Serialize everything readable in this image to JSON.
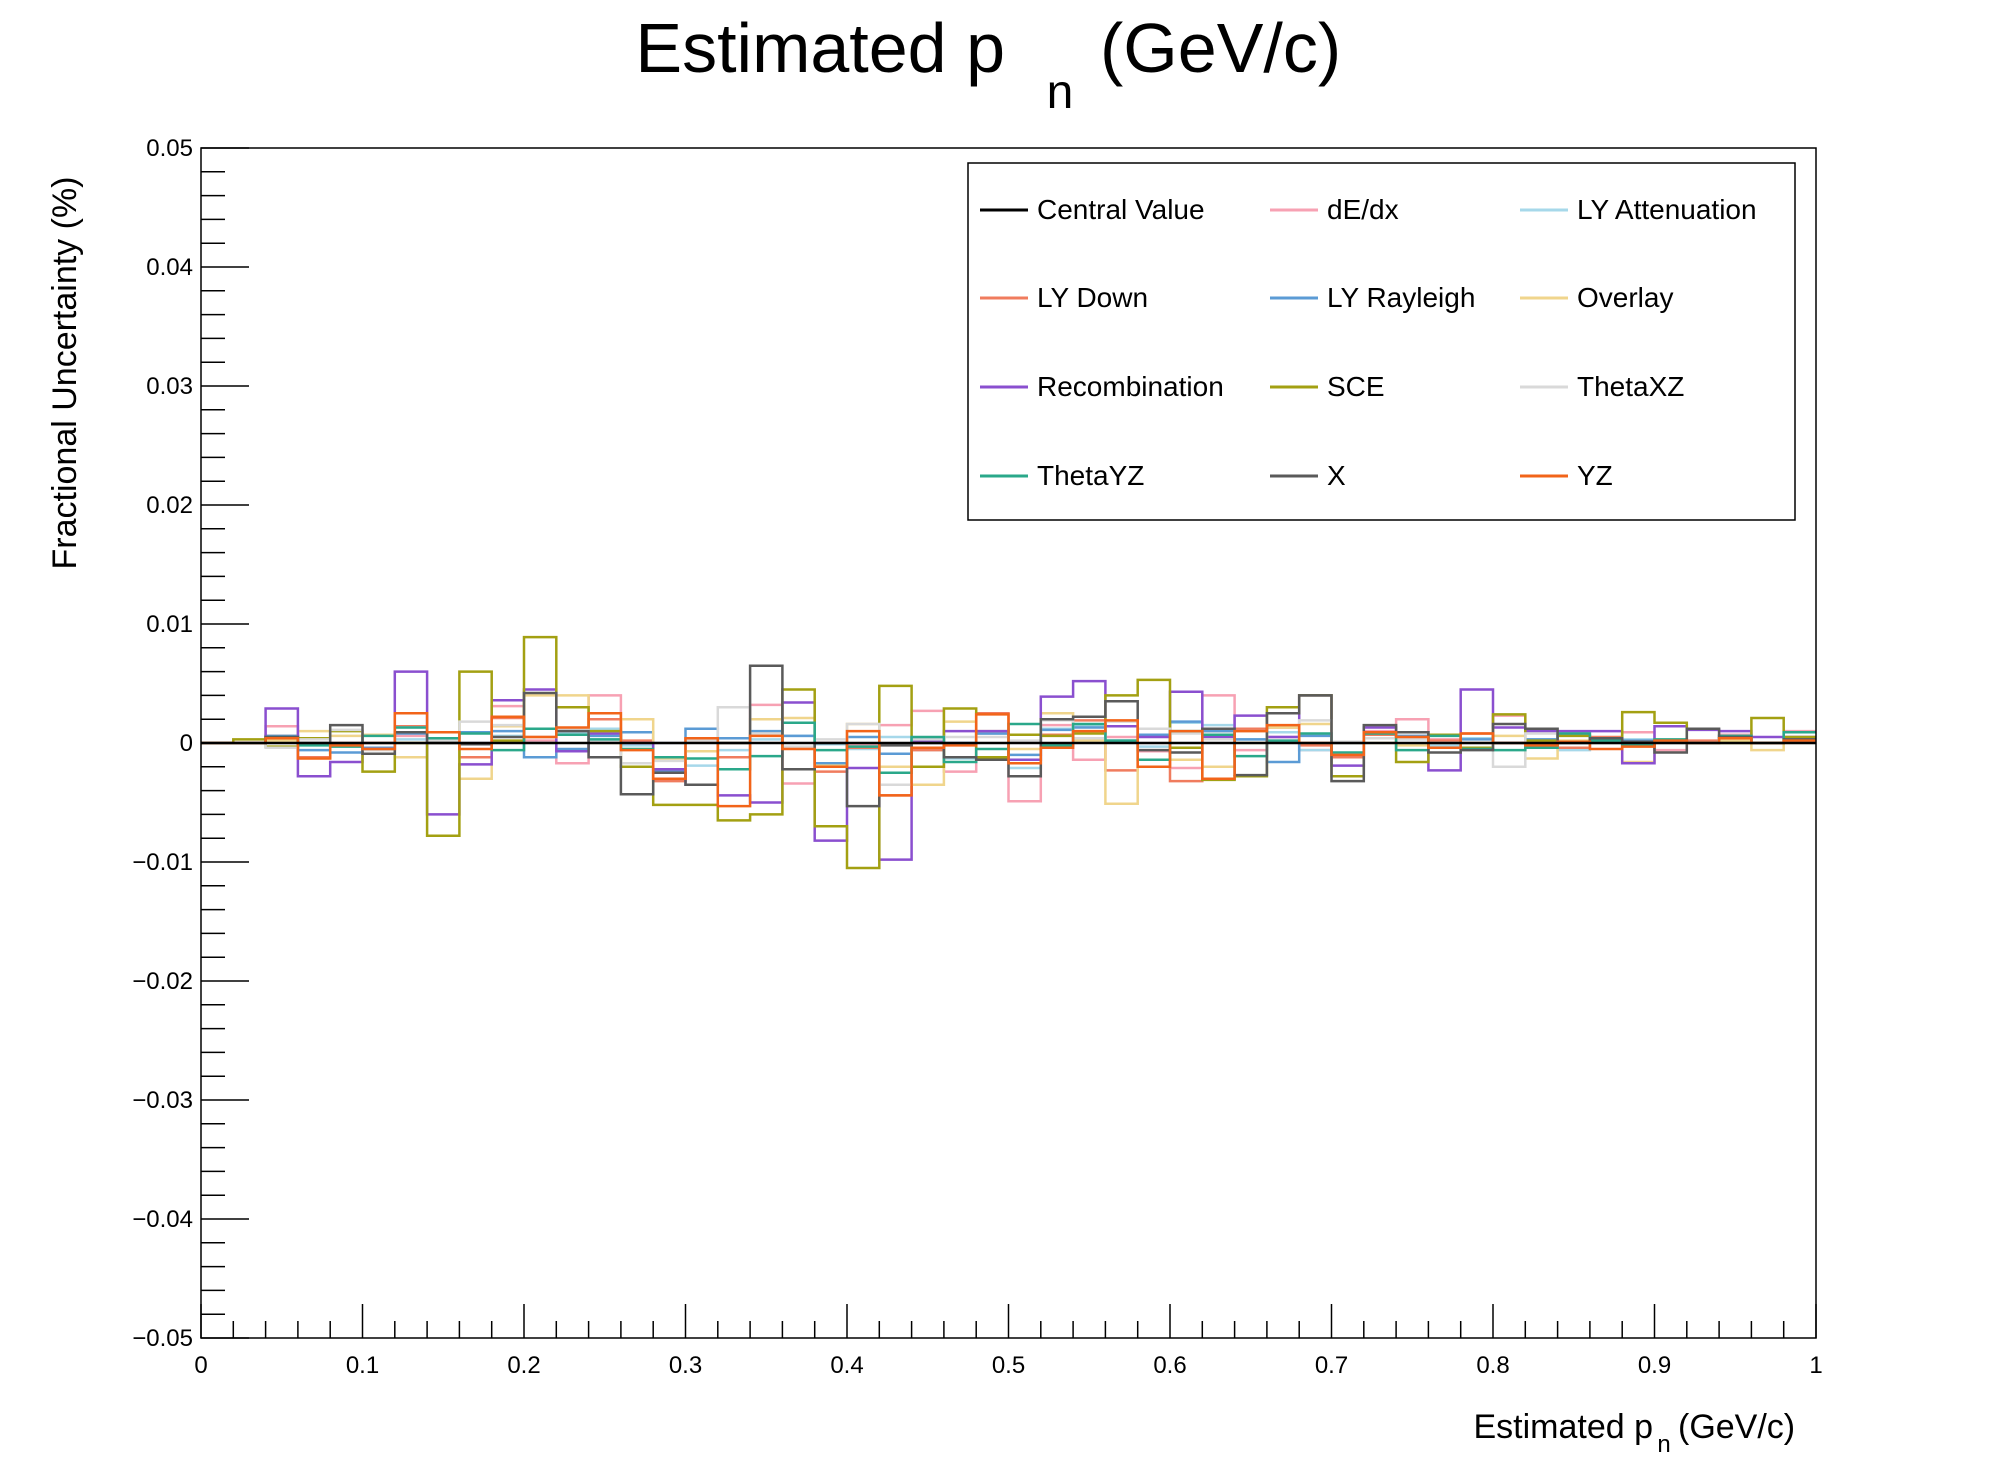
{
  "chart_data": {
    "type": "line",
    "title": "Estimated p",
    "title_sub": "n",
    "title_suffix": " (GeV/c)",
    "xlabel": "Estimated p",
    "xlabel_sub": "n",
    "xlabel_suffix": " (GeV/c)",
    "ylabel": "Fractional Uncertainty (%)",
    "xlim": [
      0,
      1
    ],
    "ylim": [
      -0.05,
      0.05
    ],
    "x_ticks": [
      0,
      0.1,
      0.2,
      0.3,
      0.4,
      0.5,
      0.6,
      0.7,
      0.8,
      0.9,
      1
    ],
    "x_tick_labels": [
      "0",
      "0.1",
      "0.2",
      "0.3",
      "0.4",
      "0.5",
      "0.6",
      "0.7",
      "0.8",
      "0.9",
      "1"
    ],
    "y_ticks": [
      -0.05,
      -0.04,
      -0.03,
      -0.02,
      -0.01,
      0,
      0.01,
      0.02,
      0.03,
      0.04,
      0.05
    ],
    "y_tick_labels": [
      "−0.05",
      "−0.04",
      "−0.03",
      "−0.02",
      "−0.01",
      "0",
      "0.01",
      "0.02",
      "0.03",
      "0.04",
      "0.05"
    ],
    "bin_width": 0.02,
    "grid": false,
    "legend_position": "top-right",
    "series": [
      {
        "name": "Central Value",
        "color": "#000000",
        "values": [
          0,
          0,
          0,
          0,
          0,
          0,
          0,
          0,
          0,
          0,
          0,
          0,
          0,
          0,
          0,
          0,
          0,
          0,
          0,
          0,
          0,
          0,
          0,
          0,
          0,
          0,
          0,
          0,
          0,
          0,
          0,
          0,
          0,
          0,
          0,
          0,
          0,
          0,
          0,
          0,
          0,
          0,
          0,
          0,
          0,
          0,
          0,
          0,
          0,
          0
        ]
      },
      {
        "name": "dE/dx",
        "color": "#f7a1b3",
        "values": [
          0,
          0,
          0.0014,
          0,
          0,
          0,
          0.0006,
          0,
          0,
          0.0031,
          0.0002,
          -0.0017,
          0.004,
          0,
          0,
          0.0003,
          -0.0012,
          0.0032,
          -0.0034,
          0,
          -0.0002,
          0.0015,
          0.0027,
          -0.0024,
          0.0008,
          -0.0049,
          0.0015,
          -0.0014,
          0.0005,
          -0.0007,
          -0.0021,
          0.004,
          -0.0006,
          0.0005,
          -0.0006,
          0,
          0.001,
          0.002,
          0.0003,
          0,
          0.0023,
          0,
          0.0007,
          0,
          0.0009,
          -0.0006,
          0,
          0.0007,
          0,
          0.001
        ]
      },
      {
        "name": "LY Attenuation",
        "color": "#a6d8ea",
        "values": [
          0,
          0,
          0.0004,
          0,
          0,
          0,
          0.0003,
          0,
          0,
          0.0006,
          0,
          0.0009,
          0.0012,
          -0.0002,
          0,
          -0.0019,
          -0.0006,
          0.0003,
          0.0006,
          -0.0001,
          -0.0005,
          0.0005,
          -0.0006,
          -0.0013,
          0.0008,
          -0.0021,
          0.0012,
          0.0014,
          0.0002,
          -0.0003,
          0.0017,
          0.0015,
          0.0003,
          0.0009,
          -0.0006,
          0,
          0.0004,
          0.0003,
          -0.0002,
          0.0004,
          0,
          0.0003,
          -0.0006,
          0,
          0.0003,
          0,
          0,
          0.0006,
          0,
          0.0009
        ]
      },
      {
        "name": "LY Down",
        "color": "#f07c5e",
        "values": [
          0,
          0,
          0.0006,
          -0.0012,
          0,
          0,
          0.0014,
          0,
          -0.0012,
          0.0021,
          0.0005,
          0.0011,
          0.002,
          0.0002,
          -0.0032,
          0.0002,
          -0.0012,
          0.0008,
          -0.0004,
          -0.0024,
          -0.0004,
          -0.0044,
          -0.0006,
          -0.0012,
          0.0025,
          -0.0014,
          0.0007,
          0.0019,
          -0.0023,
          0.0012,
          -0.0032,
          0.001,
          0.0012,
          0.0013,
          -0.0002,
          -0.0012,
          0.0007,
          0.0005,
          0.0002,
          0.0008,
          0,
          0,
          -0.0004,
          0.0005,
          0,
          0,
          0.0002,
          0.0004,
          0,
          0.0004
        ]
      },
      {
        "name": "LY Rayleigh",
        "color": "#5b9bd5",
        "values": [
          0,
          0,
          0.0006,
          -0.0006,
          -0.0008,
          -0.0004,
          0.0008,
          0,
          0.0009,
          0.001,
          -0.0012,
          -0.0005,
          0.0006,
          0.0009,
          -0.0023,
          0.0012,
          0.0004,
          0.001,
          0.0006,
          -0.0017,
          0.0005,
          -0.0009,
          0.0004,
          0,
          0.0008,
          -0.001,
          0.0011,
          0.0013,
          0.0002,
          0.0007,
          0.0018,
          0.001,
          0.0003,
          -0.0016,
          0.0006,
          0,
          0.0004,
          0.0006,
          0,
          0.0003,
          0,
          0.0003,
          0,
          0,
          0.0002,
          0,
          0,
          0.0003,
          0,
          0.0003
        ]
      },
      {
        "name": "Overlay",
        "color": "#f0d58c",
        "values": [
          0,
          0,
          0.0002,
          0.001,
          0.0006,
          0.0007,
          -0.0012,
          0,
          -0.003,
          0.0014,
          0.004,
          0.004,
          0,
          0.002,
          -0.0013,
          -0.0007,
          0,
          0.002,
          0.0021,
          -0.0019,
          0.0016,
          -0.002,
          -0.0035,
          0.0018,
          0.001,
          -0.0005,
          0.0025,
          0.0002,
          -0.0051,
          0.0012,
          -0.0014,
          -0.002,
          0,
          0.0013,
          0.0016,
          0,
          0,
          -0.0002,
          0,
          0,
          0.0006,
          -0.0013,
          0.0002,
          0,
          -0.0016,
          0,
          0,
          0.0002,
          -0.0006,
          0
        ]
      },
      {
        "name": "Recombination",
        "color": "#8a4fcf",
        "values": [
          0,
          0,
          0.0029,
          -0.0028,
          -0.0016,
          -0.0005,
          0.006,
          -0.006,
          -0.0018,
          0.0036,
          0.0045,
          -0.0007,
          0.0008,
          0,
          -0.0022,
          -0.0035,
          -0.0044,
          -0.005,
          0.0034,
          -0.0082,
          -0.0021,
          -0.0098,
          0.0002,
          0.001,
          0.001,
          -0.0014,
          0.0039,
          0.0052,
          0.0014,
          0.0005,
          0.0043,
          0.0005,
          0.0023,
          0.0005,
          0.004,
          -0.0019,
          0.0013,
          0.0009,
          -0.0023,
          0.0045,
          0.0013,
          0.001,
          0.001,
          0.001,
          -0.0017,
          0.0014,
          0.0011,
          0.001,
          0.0005,
          0.0005
        ]
      },
      {
        "name": "SCE",
        "color": "#a3a012",
        "values": [
          0,
          0.0003,
          -0.0003,
          0.0004,
          0.001,
          -0.0024,
          0,
          -0.0078,
          0.006,
          0.0002,
          0.0089,
          0.003,
          0.001,
          -0.002,
          -0.0052,
          -0.0052,
          -0.0065,
          -0.006,
          0.0045,
          -0.007,
          -0.0105,
          0.0048,
          -0.002,
          0.0029,
          -0.0012,
          0.0007,
          0.0006,
          0.0008,
          0.004,
          0.0053,
          -0.0004,
          -0.0031,
          -0.0028,
          0.003,
          0.004,
          -0.0028,
          0.0004,
          -0.0016,
          0.0007,
          -0.0004,
          0.0024,
          0.0002,
          0.0006,
          0.0002,
          0.0026,
          0.0017,
          0,
          0,
          0.0021,
          0.0005
        ]
      },
      {
        "name": "ThetaXZ",
        "color": "#d9d9d9",
        "values": [
          0,
          0,
          -0.0004,
          0.0003,
          0.0011,
          -0.0006,
          0.0013,
          0.0002,
          0.0018,
          0.0015,
          0.0005,
          0.0012,
          0.0002,
          -0.0017,
          -0.0015,
          0.0002,
          0.003,
          0.0008,
          -0.0003,
          0.0003,
          0.0016,
          -0.0035,
          0.0003,
          0.0005,
          0.0005,
          0.0002,
          0.0019,
          0.0004,
          0.0018,
          0.0012,
          0.0008,
          0.0003,
          0.001,
          0.0002,
          0.0019,
          0.0001,
          0.0004,
          0.0003,
          0,
          0,
          -0.002,
          0.0008,
          0,
          0,
          0,
          0,
          0,
          0.0004,
          0,
          0
        ]
      },
      {
        "name": "ThetaYZ",
        "color": "#2aa88a",
        "values": [
          0,
          0,
          0.0005,
          -0.0002,
          -0.0003,
          0.0006,
          0.0013,
          0.0004,
          0.0008,
          -0.0006,
          0.0012,
          0.0007,
          0.0003,
          -0.0005,
          -0.0012,
          -0.0013,
          -0.0022,
          -0.0011,
          0.0017,
          -0.0006,
          -0.0003,
          -0.0025,
          0.0005,
          -0.0016,
          -0.0005,
          0.0016,
          -0.0002,
          0.0016,
          0.0002,
          -0.0014,
          0.001,
          0.0007,
          -0.0011,
          0.0002,
          0.0008,
          -0.0008,
          0.0008,
          -0.0006,
          0.0006,
          -0.0005,
          -0.0006,
          -0.0004,
          0.0008,
          0.0002,
          -0.0002,
          0.0003,
          0,
          0.0006,
          0,
          0.0009
        ]
      },
      {
        "name": "X",
        "color": "#5a5a5a",
        "values": [
          0,
          0,
          0.0005,
          0,
          0.0015,
          -0.0009,
          0.0009,
          0,
          -0.0001,
          0.0005,
          0.0042,
          0.001,
          -0.0012,
          -0.0043,
          -0.0025,
          -0.0035,
          0,
          0.0065,
          -0.0022,
          0,
          -0.0053,
          -0.0002,
          0,
          -0.0012,
          -0.0014,
          -0.0028,
          0.002,
          0.0022,
          0.0035,
          -0.0006,
          -0.0008,
          0.0012,
          -0.0027,
          0.0025,
          0.004,
          -0.0032,
          0.0015,
          0.0009,
          -0.0008,
          -0.0006,
          0.0016,
          0.0012,
          0,
          0.0004,
          0.0001,
          -0.0008,
          0.0012,
          0.0005,
          0,
          0.0003
        ]
      },
      {
        "name": "YZ",
        "color": "#f26419",
        "values": [
          0,
          0,
          0.0004,
          -0.0013,
          -0.0002,
          -0.0005,
          0.0025,
          0.0009,
          -0.0005,
          0.0022,
          0.0005,
          0.0013,
          0.0025,
          -0.0006,
          -0.003,
          0.0004,
          -0.0053,
          0.0006,
          -0.0005,
          -0.002,
          0.001,
          -0.0044,
          -0.0004,
          -0.0002,
          0.0024,
          -0.0017,
          -0.0004,
          0.001,
          0.0019,
          -0.002,
          0.001,
          -0.003,
          0.001,
          0.0015,
          0,
          -0.001,
          0.0009,
          0.0005,
          -0.0004,
          0.0008,
          0,
          -0.0002,
          0.0001,
          -0.0005,
          -0.0003,
          0.0002,
          0,
          0.0004,
          0,
          0.0002
        ]
      }
    ]
  }
}
